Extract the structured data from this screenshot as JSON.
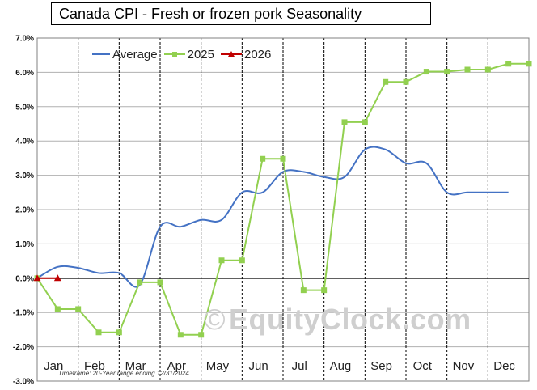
{
  "title": "Canada  CPI - Fresh or frozen pork Seasonality",
  "footnote": "Timeframe: 20-Year range ending 12/31/2024",
  "watermark": {
    "symbol": "©",
    "text": "EquityClock.com"
  },
  "chart_data": {
    "type": "line",
    "title": "Canada  CPI - Fresh or frozen pork Seasonality",
    "ylim": [
      -3.0,
      7.0
    ],
    "y_ticks": [
      -3.0,
      -2.0,
      -1.0,
      0.0,
      1.0,
      2.0,
      3.0,
      4.0,
      5.0,
      6.0,
      7.0
    ],
    "y_tick_labels": [
      "-3.0%",
      "-2.0%",
      "-1.0%",
      "0.0%",
      "1.0%",
      "2.0%",
      "3.0%",
      "4.0%",
      "5.0%",
      "6.0%",
      "7.0%"
    ],
    "xlim": [
      0,
      12
    ],
    "months": [
      "Jan",
      "Feb",
      "Mar",
      "Apr",
      "May",
      "Jun",
      "Jul",
      "Aug",
      "Sep",
      "Oct",
      "Nov",
      "Dec"
    ],
    "grid": {
      "horizontal": true,
      "vertical": "dashed at month boundaries"
    },
    "legend_position": "top-left",
    "series": [
      {
        "name": "Average",
        "color": "#4472c4",
        "marker": "none",
        "smooth": true,
        "points": [
          [
            0,
            0.0
          ],
          [
            0.5,
            0.33
          ],
          [
            1,
            0.3
          ],
          [
            1.5,
            0.15
          ],
          [
            2,
            0.15
          ],
          [
            2.5,
            -0.2
          ],
          [
            3,
            1.5
          ],
          [
            3.5,
            1.5
          ],
          [
            4,
            1.7
          ],
          [
            4.5,
            1.7
          ],
          [
            5,
            2.5
          ],
          [
            5.5,
            2.5
          ],
          [
            6,
            3.1
          ],
          [
            6.5,
            3.1
          ],
          [
            7,
            2.95
          ],
          [
            7.5,
            2.95
          ],
          [
            8,
            3.75
          ],
          [
            8.5,
            3.75
          ],
          [
            9,
            3.35
          ],
          [
            9.5,
            3.35
          ],
          [
            10,
            2.5
          ],
          [
            10.5,
            2.5
          ],
          [
            11,
            2.5
          ],
          [
            11.5,
            2.5
          ]
        ]
      },
      {
        "name": "2025",
        "color": "#92d050",
        "marker": "square",
        "points": [
          [
            0,
            0.0
          ],
          [
            0.5,
            -0.9
          ],
          [
            1,
            -0.9
          ],
          [
            1.5,
            -1.58
          ],
          [
            2,
            -1.58
          ],
          [
            2.5,
            -0.12
          ],
          [
            3,
            -0.12
          ],
          [
            3.5,
            -1.65
          ],
          [
            4,
            -1.65
          ],
          [
            4.5,
            0.52
          ],
          [
            5,
            0.52
          ],
          [
            5.5,
            3.48
          ],
          [
            6,
            3.48
          ],
          [
            6.5,
            -0.35
          ],
          [
            7,
            -0.35
          ],
          [
            7.5,
            4.55
          ],
          [
            8,
            4.55
          ],
          [
            8.5,
            5.72
          ],
          [
            9,
            5.72
          ],
          [
            9.5,
            6.02
          ],
          [
            10,
            6.02
          ],
          [
            10.5,
            6.08
          ],
          [
            11,
            6.08
          ],
          [
            11.5,
            6.25
          ],
          [
            12,
            6.25
          ]
        ]
      },
      {
        "name": "2026",
        "color": "#c00000",
        "marker": "triangle",
        "points": [
          [
            0,
            0.0
          ],
          [
            0.5,
            0.0
          ]
        ]
      }
    ]
  }
}
